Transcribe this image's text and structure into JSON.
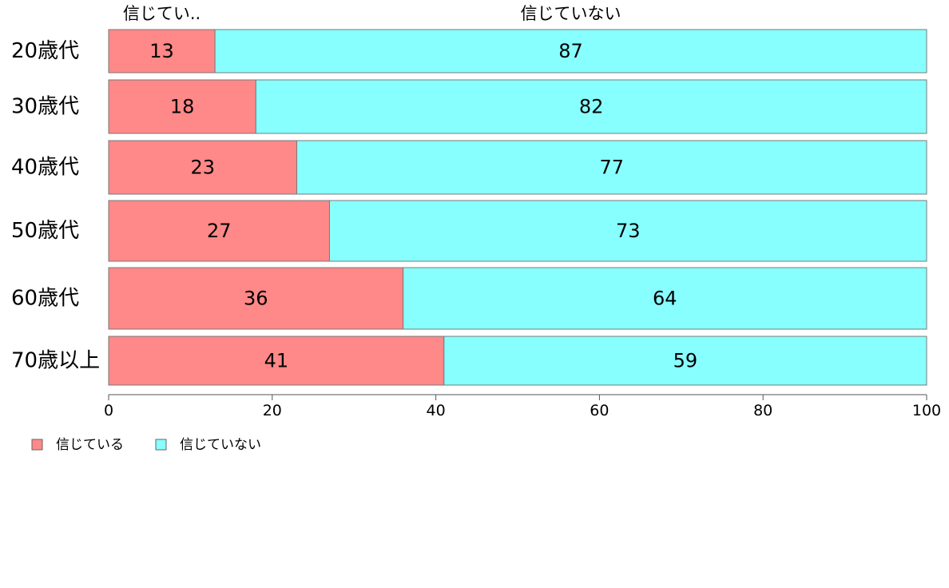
{
  "chart_data": {
    "type": "bar",
    "orientation": "horizontal",
    "stacked": true,
    "categories": [
      "20歳代",
      "30歳代",
      "40歳代",
      "50歳代",
      "60歳代",
      "70歳以上"
    ],
    "series": [
      {
        "name": "信じている",
        "values": [
          13,
          18,
          23,
          27,
          36,
          41
        ],
        "color": "#FF8888"
      },
      {
        "name": "信じていない",
        "values": [
          87,
          82,
          77,
          73,
          64,
          59
        ],
        "color": "#88FFFF"
      }
    ],
    "column_headers": [
      "信じてい..",
      "信じていない"
    ],
    "xlim": [
      0,
      100
    ],
    "xticks": [
      "0",
      "20",
      "40",
      "60",
      "80",
      "100"
    ],
    "grid": false,
    "legend_position": "bottom-left"
  }
}
